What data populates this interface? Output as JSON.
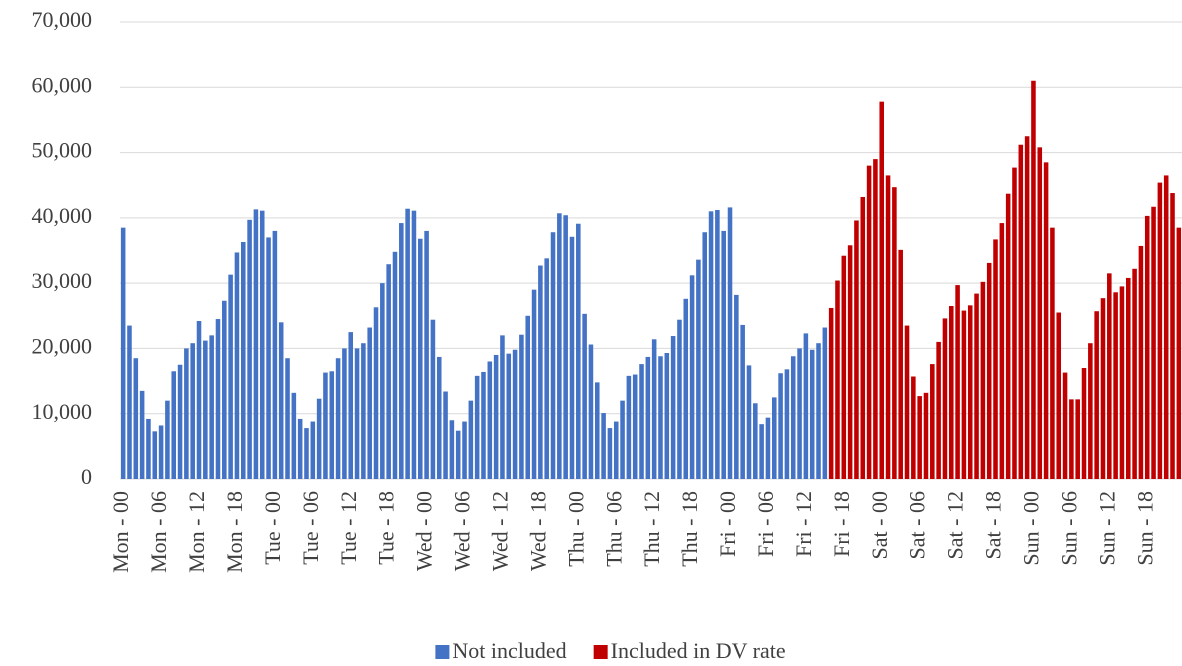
{
  "chart_data": {
    "type": "bar",
    "categories": [
      "Mon - 00",
      null,
      null,
      null,
      null,
      null,
      "Mon - 06",
      null,
      null,
      null,
      null,
      null,
      "Mon - 12",
      null,
      null,
      null,
      null,
      null,
      "Mon - 18",
      null,
      null,
      null,
      null,
      null,
      "Tue - 00",
      null,
      null,
      null,
      null,
      null,
      "Tue - 06",
      null,
      null,
      null,
      null,
      null,
      "Tue - 12",
      null,
      null,
      null,
      null,
      null,
      "Tue - 18",
      null,
      null,
      null,
      null,
      null,
      "Wed - 00",
      null,
      null,
      null,
      null,
      null,
      "Wed - 06",
      null,
      null,
      null,
      null,
      null,
      "Wed - 12",
      null,
      null,
      null,
      null,
      null,
      "Wed - 18",
      null,
      null,
      null,
      null,
      null,
      "Thu - 00",
      null,
      null,
      null,
      null,
      null,
      "Thu - 06",
      null,
      null,
      null,
      null,
      null,
      "Thu - 12",
      null,
      null,
      null,
      null,
      null,
      "Thu - 18",
      null,
      null,
      null,
      null,
      null,
      "Fri - 00",
      null,
      null,
      null,
      null,
      null,
      "Fri - 06",
      null,
      null,
      null,
      null,
      null,
      "Fri - 12",
      null,
      null,
      null,
      null,
      null,
      "Fri - 18",
      null,
      null,
      null,
      null,
      null,
      "Sat - 00",
      null,
      null,
      null,
      null,
      null,
      "Sat - 06",
      null,
      null,
      null,
      null,
      null,
      "Sat - 12",
      null,
      null,
      null,
      null,
      null,
      "Sat - 18",
      null,
      null,
      null,
      null,
      null,
      "Sun - 00",
      null,
      null,
      null,
      null,
      null,
      "Sun - 06",
      null,
      null,
      null,
      null,
      null,
      "Sun - 12",
      null,
      null,
      null,
      null,
      null,
      "Sun - 18",
      null,
      null,
      null,
      null,
      null
    ],
    "series": [
      {
        "name": "Not included",
        "color": "#4472c4",
        "values": [
          38500,
          23500,
          18500,
          13500,
          9200,
          7300,
          8200,
          12000,
          16500,
          17500,
          20000,
          20800,
          24200,
          21200,
          22000,
          24500,
          27300,
          31300,
          34700,
          36300,
          39700,
          41300,
          41100,
          37000,
          38000,
          24000,
          18500,
          13200,
          9200,
          7800,
          8800,
          12300,
          16300,
          16500,
          18500,
          20000,
          22500,
          20000,
          20800,
          23200,
          26300,
          30000,
          32900,
          34800,
          39200,
          41400,
          41100,
          36800,
          38000,
          24400,
          18700,
          13400,
          9000,
          7400,
          8800,
          12000,
          15800,
          16400,
          18000,
          19000,
          22000,
          19200,
          19800,
          22100,
          25000,
          29000,
          32700,
          33800,
          37800,
          40700,
          40400,
          37100,
          39100,
          25300,
          20600,
          14800,
          10100,
          7800,
          8800,
          12000,
          15800,
          16000,
          17600,
          18700,
          21400,
          18800,
          19300,
          21900,
          24400,
          27600,
          31200,
          33600,
          37800,
          41000,
          41200,
          38000,
          41600,
          28200,
          23600,
          17400,
          11600,
          8400,
          9400,
          12500,
          16200,
          16800,
          18800,
          20000,
          22300,
          19800,
          20800,
          23200,
          null,
          null,
          null,
          null,
          null,
          null,
          null,
          null,
          null,
          null,
          null,
          null,
          null,
          null,
          null,
          null,
          null,
          null,
          null,
          null,
          null,
          null,
          null,
          null,
          null,
          null,
          null,
          null,
          null,
          null,
          null,
          null,
          null,
          null,
          null,
          null,
          null,
          null,
          null,
          null,
          null,
          null,
          null,
          null,
          null,
          null,
          null,
          null,
          null,
          null,
          null,
          null,
          null,
          null,
          null,
          null
        ]
      },
      {
        "name": "Included in DV rate",
        "color": "#c00000",
        "values": [
          null,
          null,
          null,
          null,
          null,
          null,
          null,
          null,
          null,
          null,
          null,
          null,
          null,
          null,
          null,
          null,
          null,
          null,
          null,
          null,
          null,
          null,
          null,
          null,
          null,
          null,
          null,
          null,
          null,
          null,
          null,
          null,
          null,
          null,
          null,
          null,
          null,
          null,
          null,
          null,
          null,
          null,
          null,
          null,
          null,
          null,
          null,
          null,
          null,
          null,
          null,
          null,
          null,
          null,
          null,
          null,
          null,
          null,
          null,
          null,
          null,
          null,
          null,
          null,
          null,
          null,
          null,
          null,
          null,
          null,
          null,
          null,
          null,
          null,
          null,
          null,
          null,
          null,
          null,
          null,
          null,
          null,
          null,
          null,
          null,
          null,
          null,
          null,
          null,
          null,
          null,
          null,
          null,
          null,
          null,
          null,
          null,
          null,
          null,
          null,
          null,
          null,
          null,
          null,
          null,
          null,
          null,
          null,
          null,
          null,
          null,
          null,
          26200,
          30400,
          34200,
          35800,
          39600,
          43200,
          48000,
          49000,
          57800,
          46500,
          44700,
          35100,
          23500,
          15700,
          12700,
          13200,
          17600,
          21000,
          24600,
          26500,
          29700,
          25800,
          26600,
          28400,
          30200,
          33100,
          36700,
          39200,
          43700,
          47700,
          51200,
          52500,
          61000,
          50800,
          48500,
          38500,
          25500,
          16300,
          12200,
          12200,
          17000,
          20800,
          25700,
          27700,
          31500,
          28600,
          29500,
          30800,
          32200,
          35700,
          40300,
          41700,
          45400,
          46500,
          43800,
          38500
        ]
      }
    ],
    "ylim": [
      0,
      70000
    ],
    "yticks": [
      0,
      {
        "value": 10000,
        "label": "10,000"
      },
      {
        "value": 20000,
        "label": "20,000"
      },
      {
        "value": 30000,
        "label": "30,000"
      },
      {
        "value": 40000,
        "label": "40,000"
      },
      {
        "value": 50000,
        "label": "50,000"
      },
      {
        "value": 60000,
        "label": "60,000"
      },
      {
        "value": 70000,
        "label": "70,000"
      }
    ],
    "grid": true,
    "legend": "bottom"
  }
}
